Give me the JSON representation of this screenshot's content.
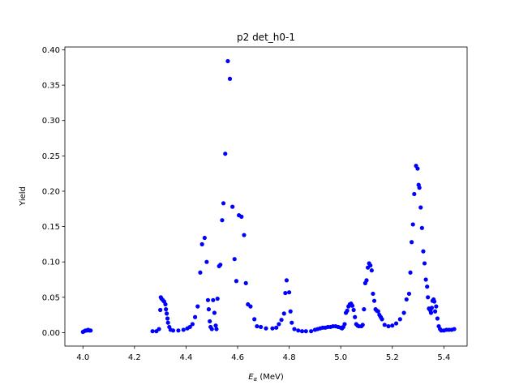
{
  "chart_data": {
    "type": "scatter",
    "title": "p2 det_h0-1",
    "xlabel_main": "E",
    "xlabel_sub": "α",
    "xlabel_unit": " (MeV)",
    "ylabel": "Yield",
    "xlim": [
      3.93,
      5.49
    ],
    "ylim": [
      -0.019,
      0.404
    ],
    "xticks": [
      "4.0",
      "4.2",
      "4.4",
      "4.6",
      "4.8",
      "5.0",
      "5.2",
      "5.4"
    ],
    "yticks": [
      "0.00",
      "0.05",
      "0.10",
      "0.15",
      "0.20",
      "0.25",
      "0.30",
      "0.35",
      "0.40"
    ],
    "grid": false,
    "marker_color": "#0000ff",
    "series": [
      {
        "points": [
          [
            4.0,
            0.001
          ],
          [
            4.005,
            0.002
          ],
          [
            4.01,
            0.003
          ],
          [
            4.015,
            0.003
          ],
          [
            4.02,
            0.004
          ],
          [
            4.025,
            0.003
          ],
          [
            4.03,
            0.003
          ],
          [
            4.27,
            0.002
          ],
          [
            4.285,
            0.002
          ],
          [
            4.295,
            0.005
          ],
          [
            4.3,
            0.032
          ],
          [
            4.302,
            0.05
          ],
          [
            4.305,
            0.048
          ],
          [
            4.31,
            0.046
          ],
          [
            4.315,
            0.044
          ],
          [
            4.32,
            0.04
          ],
          [
            4.322,
            0.033
          ],
          [
            4.325,
            0.027
          ],
          [
            4.328,
            0.02
          ],
          [
            4.33,
            0.014
          ],
          [
            4.335,
            0.008
          ],
          [
            4.34,
            0.004
          ],
          [
            4.35,
            0.003
          ],
          [
            4.37,
            0.003
          ],
          [
            4.39,
            0.004
          ],
          [
            4.405,
            0.006
          ],
          [
            4.415,
            0.008
          ],
          [
            4.425,
            0.012
          ],
          [
            4.435,
            0.022
          ],
          [
            4.445,
            0.037
          ],
          [
            4.455,
            0.085
          ],
          [
            4.462,
            0.125
          ],
          [
            4.472,
            0.134
          ],
          [
            4.48,
            0.1
          ],
          [
            4.485,
            0.046
          ],
          [
            4.488,
            0.033
          ],
          [
            4.492,
            0.016
          ],
          [
            4.495,
            0.008
          ],
          [
            4.5,
            0.005
          ],
          [
            4.505,
            0.046
          ],
          [
            4.51,
            0.028
          ],
          [
            4.515,
            0.01
          ],
          [
            4.518,
            0.005
          ],
          [
            4.522,
            0.048
          ],
          [
            4.528,
            0.094
          ],
          [
            4.533,
            0.096
          ],
          [
            4.54,
            0.159
          ],
          [
            4.545,
            0.183
          ],
          [
            4.552,
            0.253
          ],
          [
            4.562,
            0.384
          ],
          [
            4.57,
            0.359
          ],
          [
            4.58,
            0.178
          ],
          [
            4.588,
            0.104
          ],
          [
            4.595,
            0.073
          ],
          [
            4.605,
            0.166
          ],
          [
            4.615,
            0.164
          ],
          [
            4.625,
            0.138
          ],
          [
            4.632,
            0.07
          ],
          [
            4.64,
            0.04
          ],
          [
            4.65,
            0.037
          ],
          [
            4.665,
            0.019
          ],
          [
            4.675,
            0.009
          ],
          [
            4.69,
            0.008
          ],
          [
            4.71,
            0.006
          ],
          [
            4.735,
            0.006
          ],
          [
            4.75,
            0.007
          ],
          [
            4.76,
            0.012
          ],
          [
            4.77,
            0.018
          ],
          [
            4.78,
            0.027
          ],
          [
            4.785,
            0.056
          ],
          [
            4.79,
            0.074
          ],
          [
            4.8,
            0.057
          ],
          [
            4.805,
            0.03
          ],
          [
            4.81,
            0.014
          ],
          [
            4.82,
            0.005
          ],
          [
            4.835,
            0.003
          ],
          [
            4.85,
            0.002
          ],
          [
            4.865,
            0.002
          ],
          [
            4.885,
            0.002
          ],
          [
            4.9,
            0.004
          ],
          [
            4.91,
            0.005
          ],
          [
            4.92,
            0.006
          ],
          [
            4.93,
            0.007
          ],
          [
            4.94,
            0.007
          ],
          [
            4.95,
            0.008
          ],
          [
            4.96,
            0.008
          ],
          [
            4.97,
            0.009
          ],
          [
            4.98,
            0.009
          ],
          [
            4.99,
            0.008
          ],
          [
            5.0,
            0.007
          ],
          [
            5.005,
            0.006
          ],
          [
            5.01,
            0.008
          ],
          [
            5.015,
            0.012
          ],
          [
            5.02,
            0.028
          ],
          [
            5.025,
            0.031
          ],
          [
            5.03,
            0.037
          ],
          [
            5.035,
            0.04
          ],
          [
            5.04,
            0.041
          ],
          [
            5.045,
            0.038
          ],
          [
            5.05,
            0.032
          ],
          [
            5.055,
            0.022
          ],
          [
            5.06,
            0.012
          ],
          [
            5.065,
            0.01
          ],
          [
            5.07,
            0.009
          ],
          [
            5.08,
            0.009
          ],
          [
            5.085,
            0.011
          ],
          [
            5.09,
            0.033
          ],
          [
            5.095,
            0.07
          ],
          [
            5.1,
            0.074
          ],
          [
            5.105,
            0.092
          ],
          [
            5.11,
            0.098
          ],
          [
            5.115,
            0.095
          ],
          [
            5.12,
            0.088
          ],
          [
            5.125,
            0.055
          ],
          [
            5.13,
            0.045
          ],
          [
            5.135,
            0.033
          ],
          [
            5.14,
            0.031
          ],
          [
            5.145,
            0.03
          ],
          [
            5.15,
            0.025
          ],
          [
            5.155,
            0.022
          ],
          [
            5.16,
            0.019
          ],
          [
            5.17,
            0.011
          ],
          [
            5.185,
            0.009
          ],
          [
            5.2,
            0.01
          ],
          [
            5.215,
            0.013
          ],
          [
            5.23,
            0.019
          ],
          [
            5.245,
            0.028
          ],
          [
            5.255,
            0.047
          ],
          [
            5.265,
            0.055
          ],
          [
            5.27,
            0.085
          ],
          [
            5.275,
            0.128
          ],
          [
            5.28,
            0.153
          ],
          [
            5.285,
            0.196
          ],
          [
            5.292,
            0.236
          ],
          [
            5.298,
            0.232
          ],
          [
            5.302,
            0.209
          ],
          [
            5.305,
            0.205
          ],
          [
            5.31,
            0.177
          ],
          [
            5.315,
            0.148
          ],
          [
            5.32,
            0.115
          ],
          [
            5.325,
            0.098
          ],
          [
            5.33,
            0.075
          ],
          [
            5.335,
            0.065
          ],
          [
            5.338,
            0.05
          ],
          [
            5.342,
            0.034
          ],
          [
            5.345,
            0.033
          ],
          [
            5.348,
            0.031
          ],
          [
            5.35,
            0.028
          ],
          [
            5.353,
            0.035
          ],
          [
            5.356,
            0.045
          ],
          [
            5.36,
            0.047
          ],
          [
            5.363,
            0.044
          ],
          [
            5.366,
            0.03
          ],
          [
            5.37,
            0.037
          ],
          [
            5.375,
            0.02
          ],
          [
            5.38,
            0.009
          ],
          [
            5.385,
            0.005
          ],
          [
            5.39,
            0.003
          ],
          [
            5.4,
            0.003
          ],
          [
            5.41,
            0.004
          ],
          [
            5.42,
            0.004
          ],
          [
            5.43,
            0.004
          ],
          [
            5.44,
            0.005
          ]
        ]
      }
    ]
  }
}
